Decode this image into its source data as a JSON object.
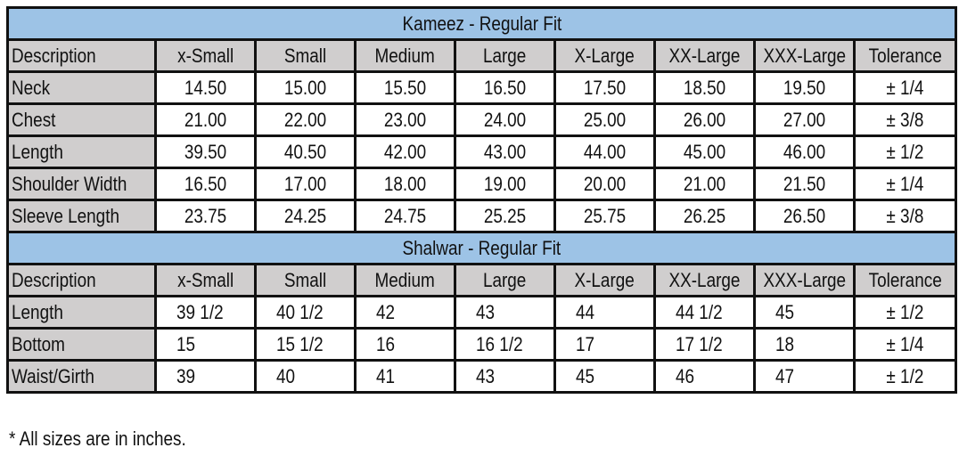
{
  "kameez": {
    "title": "Kameez - Regular Fit",
    "headers": [
      "Description",
      "x-Small",
      "Small",
      "Medium",
      "Large",
      "X-Large",
      "XX-Large",
      "XXX-Large",
      "Tolerance"
    ],
    "rows": [
      [
        "Neck",
        "14.50",
        "15.00",
        "15.50",
        "16.50",
        "17.50",
        "18.50",
        "19.50",
        "± 1/4"
      ],
      [
        "Chest",
        "21.00",
        "22.00",
        "23.00",
        "24.00",
        "25.00",
        "26.00",
        "27.00",
        "± 3/8"
      ],
      [
        "Length",
        "39.50",
        "40.50",
        "42.00",
        "43.00",
        "44.00",
        "45.00",
        "46.00",
        "± 1/2"
      ],
      [
        "Shoulder Width",
        "16.50",
        "17.00",
        "18.00",
        "19.00",
        "20.00",
        "21.00",
        "21.50",
        "± 1/4"
      ],
      [
        "Sleeve Length",
        "23.75",
        "24.25",
        "24.75",
        "25.25",
        "25.75",
        "26.25",
        "26.50",
        "± 3/8"
      ]
    ]
  },
  "shalwar": {
    "title": "Shalwar - Regular Fit",
    "headers": [
      "Description",
      "x-Small",
      "Small",
      "Medium",
      "Large",
      "X-Large",
      "XX-Large",
      "XXX-Large",
      "Tolerance"
    ],
    "rows": [
      [
        "Length",
        "39 1/2",
        "40 1/2",
        "42",
        "43",
        "44",
        "44 1/2",
        "45",
        "± 1/2"
      ],
      [
        "Bottom",
        "15",
        "15 1/2",
        "16",
        "16 1/2",
        "17",
        "17 1/2",
        "18",
        "± 1/4"
      ],
      [
        "Waist/Girth",
        "39",
        "40",
        "41",
        "43",
        "45",
        "46",
        "47",
        "± 1/2"
      ]
    ]
  },
  "footnote": "* All sizes are in inches.",
  "colors": {
    "title_bg": "#9dc3e6",
    "header_bg": "#d0cece",
    "border": "#111111"
  }
}
